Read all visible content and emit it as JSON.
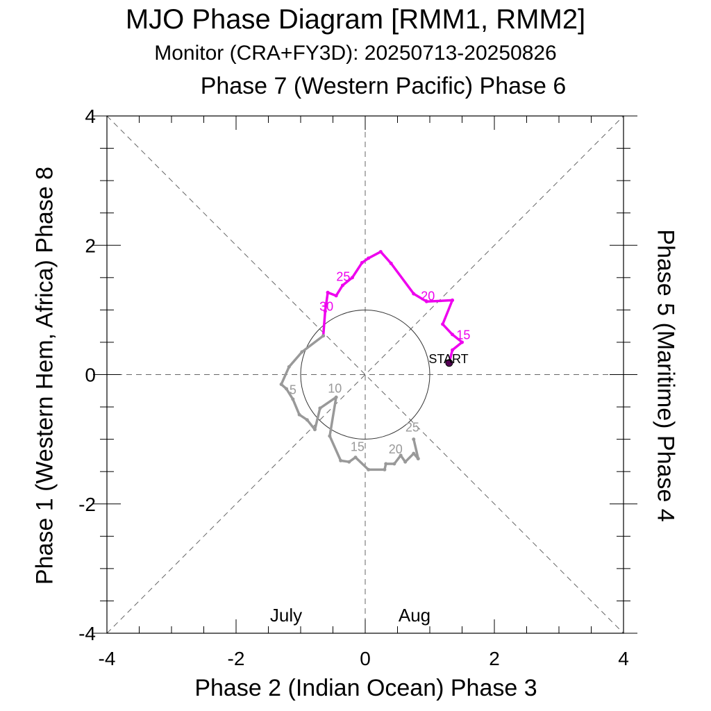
{
  "chart_data": {
    "type": "line",
    "title": "MJO Phase Diagram [RMM1, RMM2]",
    "subtitle": "Monitor (CRA+FY3D): 20250713-20250826",
    "top_label": "Phase 7 (Western Pacific) Phase 6",
    "xlabel": "Phase 2 (Indian Ocean) Phase 3",
    "ylabel_left": "Phase 1 (Western Hem, Africa) Phase 8",
    "ylabel_right": "Phase 5 (Maritime) Phase 4",
    "xlim": [
      -4,
      4
    ],
    "ylim": [
      -4,
      4
    ],
    "xticks": [
      "-4",
      "-2",
      "0",
      "2",
      "4"
    ],
    "yticks": [
      "-4",
      "-2",
      "0",
      "2",
      "4"
    ],
    "start_label": "START",
    "circle_radius": 1,
    "series": [
      {
        "name": "July",
        "color": "#ee00ee",
        "points": [
          [
            1.3,
            0.18
          ],
          [
            1.35,
            0.38
          ],
          [
            1.5,
            0.5
          ],
          [
            1.35,
            0.62
          ],
          [
            1.2,
            0.78
          ],
          [
            1.35,
            1.15
          ],
          [
            0.95,
            1.13
          ],
          [
            0.75,
            1.25
          ],
          [
            0.4,
            1.72
          ],
          [
            0.24,
            1.9
          ],
          [
            0.05,
            1.8
          ],
          [
            -0.05,
            1.73
          ],
          [
            -0.2,
            1.5
          ],
          [
            -0.35,
            1.38
          ],
          [
            -0.45,
            1.22
          ],
          [
            -0.58,
            1.27
          ],
          [
            -0.62,
            0.98
          ],
          [
            -0.65,
            0.6
          ]
        ],
        "day_labels": [
          {
            "text": "15",
            "x": 1.52,
            "y": 0.55
          },
          {
            "text": "20",
            "x": 0.97,
            "y": 1.15
          },
          {
            "text": "25",
            "x": -0.34,
            "y": 1.45
          },
          {
            "text": "30",
            "x": -0.6,
            "y": 0.99
          }
        ]
      },
      {
        "name": "Aug",
        "color": "#999999",
        "points": [
          [
            -0.65,
            0.6
          ],
          [
            -0.98,
            0.35
          ],
          [
            -1.18,
            0.12
          ],
          [
            -1.3,
            -0.15
          ],
          [
            -1.22,
            -0.22
          ],
          [
            -1.12,
            -0.38
          ],
          [
            -1.02,
            -0.62
          ],
          [
            -0.9,
            -0.7
          ],
          [
            -0.78,
            -0.85
          ],
          [
            -0.7,
            -0.52
          ],
          [
            -0.45,
            -0.35
          ],
          [
            -0.55,
            -0.95
          ],
          [
            -0.38,
            -1.33
          ],
          [
            -0.25,
            -1.35
          ],
          [
            -0.15,
            -1.28
          ],
          [
            0.05,
            -1.47
          ],
          [
            0.3,
            -1.47
          ],
          [
            0.32,
            -1.38
          ],
          [
            0.45,
            -1.38
          ],
          [
            0.55,
            -1.25
          ],
          [
            0.62,
            -1.35
          ],
          [
            0.75,
            -1.22
          ],
          [
            0.82,
            -1.3
          ],
          [
            0.75,
            -1.0
          ]
        ],
        "day_labels": [
          {
            "text": "5",
            "x": -1.12,
            "y": -0.3
          },
          {
            "text": "10",
            "x": -0.47,
            "y": -0.28
          },
          {
            "text": "15",
            "x": -0.12,
            "y": -1.18
          },
          {
            "text": "20",
            "x": 0.47,
            "y": -1.22
          },
          {
            "text": "25",
            "x": 0.73,
            "y": -0.88
          }
        ]
      }
    ],
    "legend": [
      "July",
      "Aug"
    ]
  }
}
